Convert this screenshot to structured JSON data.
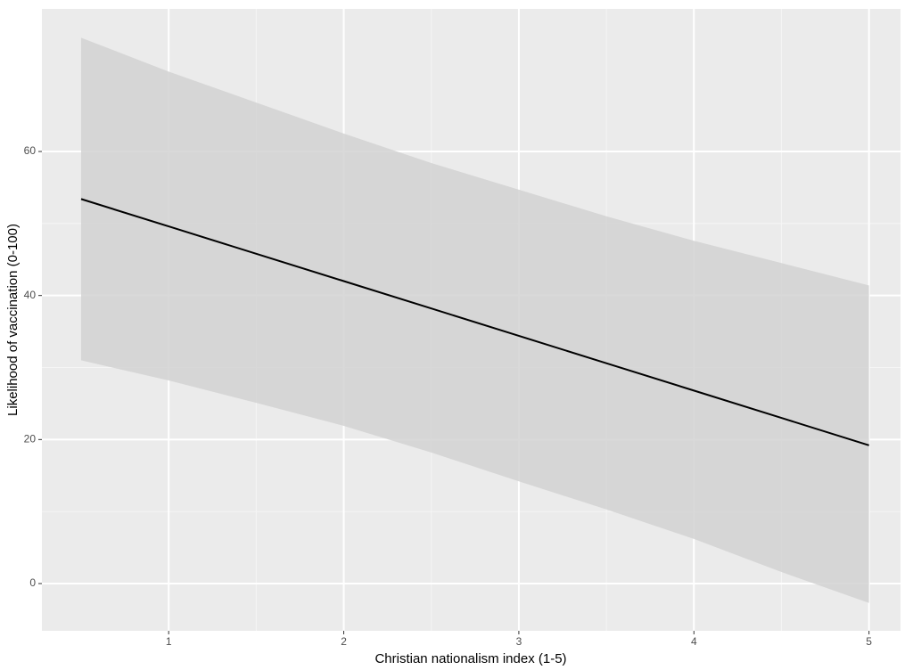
{
  "chart_data": {
    "type": "line",
    "x_label": "Christian nationalism index (1-5)",
    "y_label": "Likelihood of vaccination (0-100)",
    "x": [
      0.5,
      1,
      1.5,
      2,
      2.5,
      3,
      3.5,
      4,
      4.5,
      5
    ],
    "values": [
      53.4,
      49.6,
      45.8,
      42.0,
      38.2,
      34.4,
      30.6,
      26.8,
      23.0,
      19.2
    ],
    "upper": [
      75.8,
      71.1,
      66.8,
      62.5,
      58.4,
      54.7,
      51.0,
      47.6,
      44.5,
      41.4
    ],
    "lower": [
      31.0,
      28.2,
      25.1,
      21.9,
      18.2,
      14.2,
      10.3,
      6.2,
      1.6,
      -2.7
    ],
    "color": "#000000",
    "ribbon_color": "#d2d2d2",
    "xlim": [
      0.276,
      5.18
    ],
    "ylim": [
      -6.56,
      79.8
    ],
    "xticks": [
      1,
      2,
      3,
      4,
      5
    ],
    "yticks": [
      0,
      20,
      40,
      60
    ],
    "grid": true
  }
}
